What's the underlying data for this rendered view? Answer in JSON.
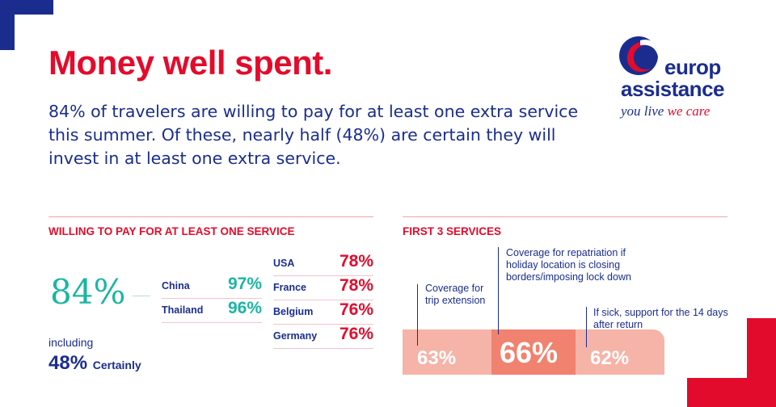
{
  "header": {
    "title": "Money well spent.",
    "intro": "84% of travelers are willing to pay for at least one extra service this summer. Of these, nearly half (48%) are certain they will invest in at least one extra service."
  },
  "logo": {
    "line1": "europ",
    "line2": "assistance",
    "tagline_part1": "you live",
    "tagline_part2": "we care"
  },
  "willing": {
    "heading": "WILLING TO PAY FOR AT LEAST ONE SERVICE",
    "overall": "84%",
    "including_label": "including",
    "certain_pct": "48%",
    "certain_label": "Certainly",
    "countries_left": [
      {
        "name": "China",
        "pct": "97%"
      },
      {
        "name": "Thailand",
        "pct": "96%"
      }
    ],
    "countries_right": [
      {
        "name": "USA",
        "pct": "78%"
      },
      {
        "name": "France",
        "pct": "78%"
      },
      {
        "name": "Belgium",
        "pct": "76%"
      },
      {
        "name": "Germany",
        "pct": "76%"
      }
    ]
  },
  "services": {
    "heading": "FIRST 3 SERVICES",
    "items": [
      {
        "label": "Coverage for trip extension",
        "pct": "63%"
      },
      {
        "label": "Coverage for repatriation if holiday location is closing borders/imposing lock down",
        "pct": "66%"
      },
      {
        "label": "If sick, support for the 14 days after return",
        "pct": "62%"
      }
    ]
  },
  "colors": {
    "brand_red": "#e30b2b",
    "brand_blue": "#1a2d8f",
    "teal": "#1bb5a4",
    "salmon_light": "#f6b3a7",
    "salmon_dark": "#f0826f"
  }
}
